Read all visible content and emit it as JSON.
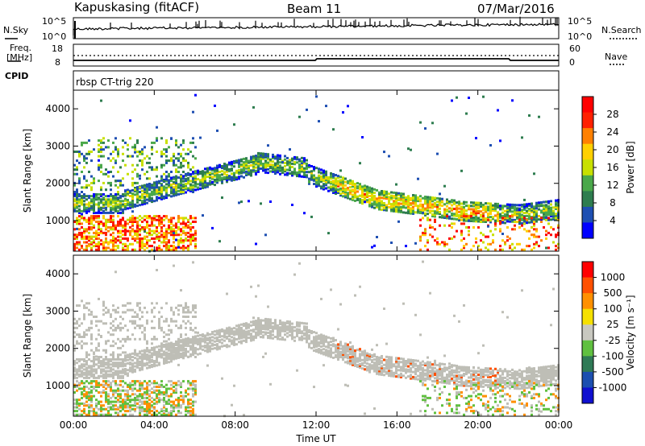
{
  "header": {
    "station_title": "Kapuskasing (fitACF)",
    "beam": "Beam 11",
    "date": "07/Mar/2016"
  },
  "top_panels": {
    "nsky_label": "N.Sky",
    "nsearch_label": "N.Search",
    "nsky_ticks": [
      "10^5",
      "10^0"
    ],
    "nsearch_ticks": [
      "10^5",
      "10^0"
    ],
    "freq_label_1": "Freq.",
    "freq_label_2": "[MHz]",
    "freq_ticks": [
      "18",
      "8"
    ],
    "nave_label": "Nave",
    "nave_ticks": [
      "60",
      "0"
    ],
    "cpid_label": "CPID",
    "cpid_value": "rbsp CT-trig 220"
  },
  "colors": {
    "power_scale": [
      "#0000ff",
      "#1e4fb2",
      "#2e7d4f",
      "#4aa84a",
      "#c8e000",
      "#ffd000",
      "#ff8000",
      "#ff2000",
      "#ff0000"
    ],
    "velocity_scale": [
      "#1010d0",
      "#1c4fb0",
      "#2f7a56",
      "#60c040",
      "#c8c8c0",
      "#f5e000",
      "#ff9000",
      "#ff5000",
      "#ff0000"
    ],
    "ground_scatter": "#bebeb6"
  },
  "chart_data": [
    {
      "type": "heatmap",
      "title": "Power",
      "ylabel": "Slant Range [km]",
      "ylim": [
        180,
        4500
      ],
      "yticks": [
        "4000",
        "3000",
        "2000",
        "1000"
      ],
      "xlim": [
        "00:00",
        "24:00"
      ],
      "colorbar_label": "Power [dB]",
      "colorbar_ticks": [
        "28",
        "24",
        "20",
        "16",
        "12",
        "8",
        "4"
      ],
      "colorbar_range": [
        0,
        32
      ]
    },
    {
      "type": "heatmap",
      "title": "Velocity",
      "ylabel": "Slant Range [km]",
      "ylim": [
        180,
        4500
      ],
      "yticks": [
        "4000",
        "3000",
        "2000",
        "1000"
      ],
      "xlabel": "Time UT",
      "xticks": [
        "00:00",
        "04:00",
        "08:00",
        "12:00",
        "16:00",
        "20:00",
        "00:00"
      ],
      "colorbar_label": "Velocity [m s⁻¹]",
      "colorbar_ticks": [
        "1000",
        "500",
        "100",
        "25",
        "-25",
        "-100",
        "-500",
        "-1000"
      ]
    }
  ]
}
